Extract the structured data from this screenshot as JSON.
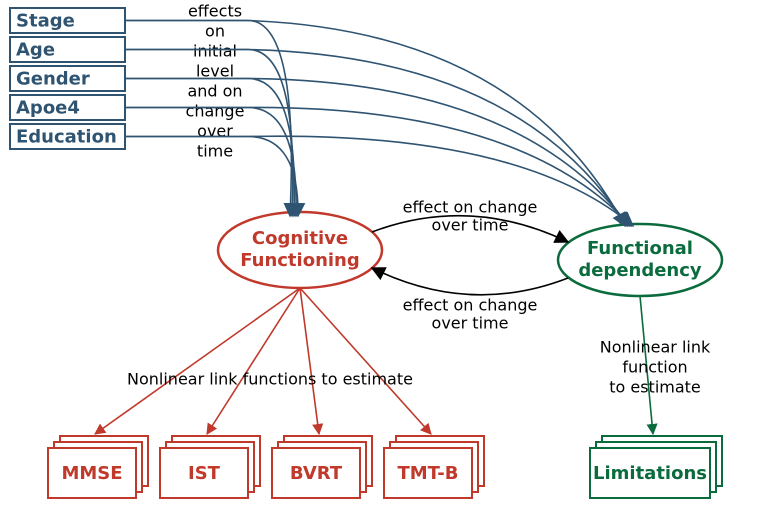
{
  "colors": {
    "predictor_stroke": "#2f5472",
    "predictor_text": "#2f5472",
    "cognitive": "#c0392b",
    "functional": "#0a6b3d",
    "black": "#000000"
  },
  "predictors": [
    {
      "label": "Stage"
    },
    {
      "label": "Age"
    },
    {
      "label": "Gender"
    },
    {
      "label": "Apoe4"
    },
    {
      "label": "Education"
    }
  ],
  "predictor_annotation": [
    "effects",
    "on",
    "initial",
    "level",
    "and on",
    "change",
    "over",
    "time"
  ],
  "latents": {
    "cognitive": {
      "line1": "Cognitive",
      "line2": "Functioning"
    },
    "functional": {
      "line1": "Functional",
      "line2": "dependency"
    }
  },
  "bridge_labels": {
    "top": {
      "line1": "effect on change",
      "line2": "over time"
    },
    "bottom": {
      "line1": "effect on change",
      "line2": "over time"
    }
  },
  "cognitive_outcomes": [
    "MMSE",
    "IST",
    "BVRT",
    "TMT-B"
  ],
  "functional_outcome": "Limitations",
  "link_labels": {
    "cognitive": "Nonlinear link functions to estimate",
    "functional": {
      "line1": "Nonlinear link",
      "line2": "function",
      "line3": "to estimate"
    }
  }
}
